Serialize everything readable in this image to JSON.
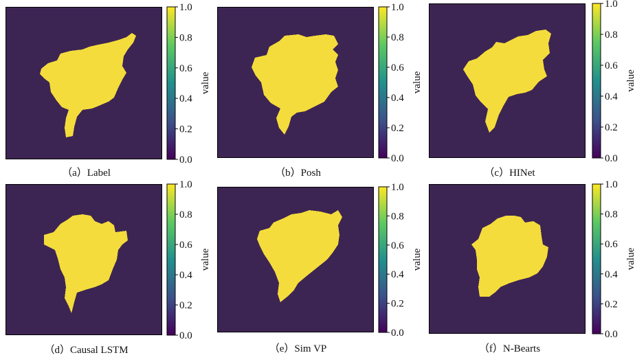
{
  "colors": {
    "background": "#3d2553",
    "mask": "#f4dc3c"
  },
  "colorbar": {
    "label": "value",
    "ticks": [
      "0.0",
      "0.2",
      "0.4",
      "0.6",
      "0.8",
      "1.0"
    ],
    "range": [
      0.0,
      1.0
    ],
    "colormap": "viridis"
  },
  "chart_data": [
    {
      "type": "heatmap",
      "caption": "（a）Label",
      "values": "binary mask: 0 = background, 1 = target region",
      "vmin": 0,
      "vmax": 1,
      "colorbar_label": "value",
      "colorbar_ticks": [
        "0.0",
        "0.2",
        "0.4",
        "0.6",
        "0.8",
        "1.0"
      ]
    },
    {
      "type": "heatmap",
      "caption": "（b）Posh",
      "vmin": 0,
      "vmax": 1,
      "colorbar_label": "value",
      "colorbar_ticks": [
        "0.0",
        "0.2",
        "0.4",
        "0.6",
        "0.8",
        "1.0"
      ]
    },
    {
      "type": "heatmap",
      "caption": "（c）HINet",
      "vmin": 0,
      "vmax": 1,
      "colorbar_label": "value",
      "colorbar_ticks": [
        "0.0",
        "0.2",
        "0.4",
        "0.6",
        "0.8",
        "1.0"
      ]
    },
    {
      "type": "heatmap",
      "caption": "（d）Causal LSTM",
      "vmin": 0,
      "vmax": 1,
      "colorbar_label": "value",
      "colorbar_ticks": [
        "0.0",
        "0.2",
        "0.4",
        "0.6",
        "0.8",
        "1.0"
      ]
    },
    {
      "type": "heatmap",
      "caption": "（e）Sim VP",
      "vmin": 0,
      "vmax": 1,
      "colorbar_label": "value",
      "colorbar_ticks": [
        "0.0",
        "0.2",
        "0.4",
        "0.6",
        "0.8",
        "1.0"
      ]
    },
    {
      "type": "heatmap",
      "caption": "（f）N-Bearts",
      "vmin": 0,
      "vmax": 1,
      "colorbar_label": "value",
      "colorbar_ticks": [
        "0.0",
        "0.2",
        "0.4",
        "0.6",
        "0.8",
        "1.0"
      ]
    }
  ]
}
